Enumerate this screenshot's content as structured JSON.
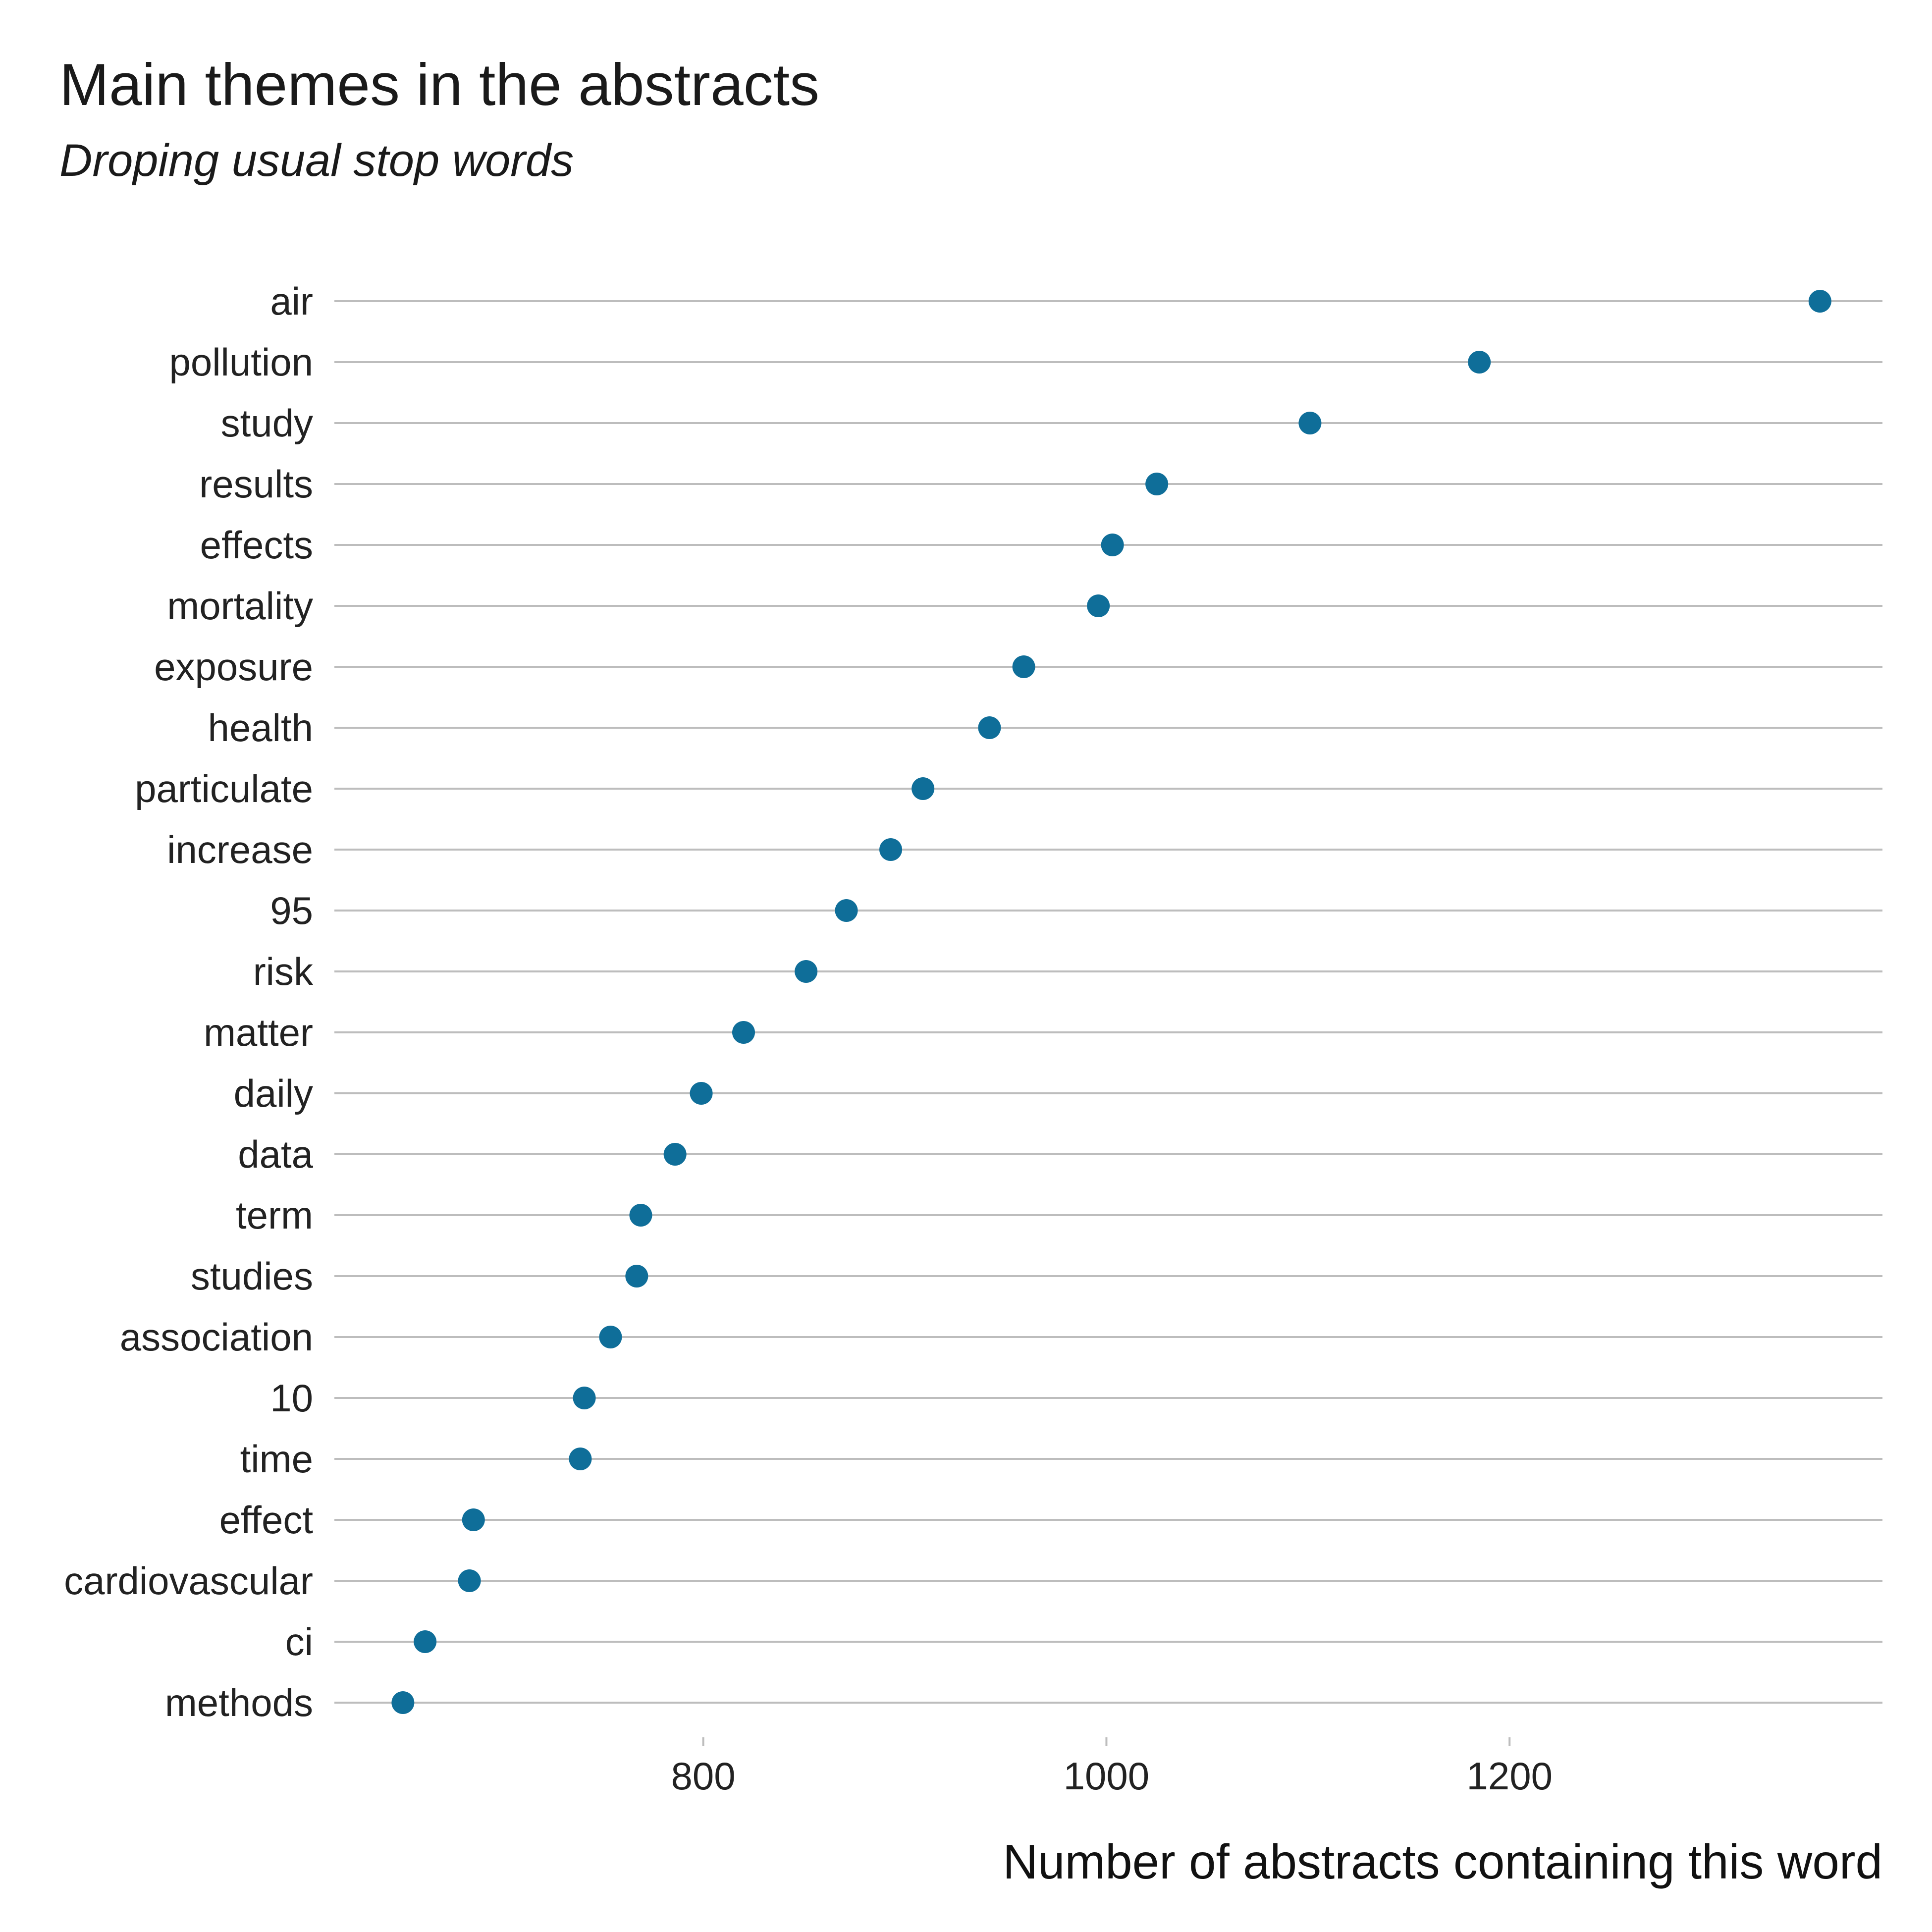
{
  "chart_data": {
    "type": "scatter",
    "title": "Main themes in the abstracts",
    "subtitle": "Droping usual stop words",
    "xlabel": "Number of abstracts containing this word",
    "ylabel": "",
    "xlim": [
      617,
      1385
    ],
    "x_ticks": [
      800,
      1000,
      1200
    ],
    "grid": "horizontal",
    "point_color": "#0f6e99",
    "categories": [
      "air",
      "pollution",
      "study",
      "results",
      "effects",
      "mortality",
      "exposure",
      "health",
      "particulate",
      "increase",
      "95",
      "risk",
      "matter",
      "daily",
      "data",
      "term",
      "studies",
      "association",
      "10",
      "time",
      "effect",
      "cardiovascular",
      "ci",
      "methods"
    ],
    "values": [
      1354,
      1185,
      1101,
      1025,
      1003,
      996,
      959,
      942,
      909,
      893,
      871,
      851,
      820,
      799,
      786,
      769,
      767,
      754,
      741,
      739,
      686,
      684,
      662,
      651
    ]
  }
}
